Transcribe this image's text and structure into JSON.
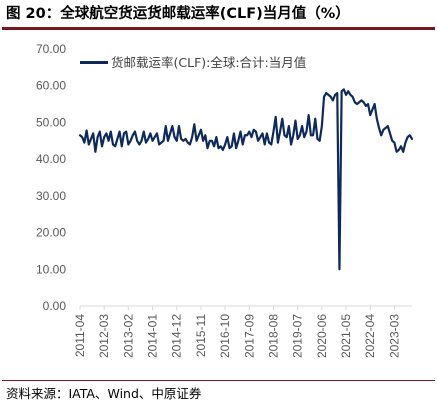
{
  "figure": {
    "title": "图 20：全球航空货运货邮载运率(CLF)当月值（%）",
    "source": "资料来源：IATA、Wind、中原证券"
  },
  "colors": {
    "line": "#0e2a5c",
    "rule": "#7a1620",
    "tick_text": "#595959",
    "axis": "#d9d9d9"
  },
  "chart_data": {
    "type": "line",
    "title": "",
    "xlabel": "",
    "ylabel": "",
    "ylim": [
      0,
      70
    ],
    "y_ticks": [
      "0.00",
      "10.00",
      "20.00",
      "30.00",
      "40.00",
      "50.00",
      "60.00",
      "70.00"
    ],
    "x_tick_labels": [
      "2011-04",
      "2012-03",
      "2013-02",
      "2014-01",
      "2014-12",
      "2015-11",
      "2016-10",
      "2017-09",
      "2018-08",
      "2019-07",
      "2020-06",
      "2021-05",
      "2022-04",
      "2023-03"
    ],
    "grid": false,
    "legend_position": "top-left",
    "series": [
      {
        "name": "货邮载运率(CLF):全球:合计:当月值",
        "x_start": "2011-04",
        "frequency": "monthly",
        "values": [
          46.5,
          46.0,
          44.5,
          47.8,
          44.0,
          45.5,
          47.0,
          42.0,
          46.0,
          47.5,
          43.5,
          46.0,
          47.0,
          45.0,
          47.5,
          44.0,
          43.5,
          45.5,
          47.5,
          43.5,
          47.0,
          47.5,
          44.0,
          45.0,
          46.5,
          47.5,
          45.0,
          44.0,
          45.0,
          47.5,
          44.5,
          45.5,
          47.0,
          45.0,
          46.0,
          47.0,
          44.0,
          44.5,
          45.0,
          49.0,
          45.0,
          47.0,
          49.0,
          46.0,
          45.0,
          49.0,
          45.5,
          45.0,
          45.5,
          44.5,
          44.0,
          46.0,
          49.5,
          45.0,
          46.5,
          48.0,
          45.0,
          46.5,
          43.0,
          45.0,
          45.0,
          43.5,
          46.0,
          43.0,
          43.5,
          42.5,
          44.0,
          46.0,
          43.0,
          43.5,
          47.0,
          43.0,
          45.0,
          47.5,
          44.0,
          46.5,
          46.5,
          47.5,
          46.0,
          48.0,
          47.5,
          45.0,
          46.0,
          47.0,
          44.0,
          47.0,
          44.5,
          44.0,
          47.5,
          51.5,
          44.5,
          47.5,
          51.0,
          46.5,
          46.0,
          49.0,
          44.0,
          46.5,
          50.5,
          45.5,
          46.5,
          49.0,
          46.0,
          47.5,
          52.0,
          46.5,
          46.5,
          51.0,
          45.5,
          45.0,
          49.0,
          57.0,
          58.0,
          57.5,
          57.0,
          56.0,
          57.5,
          58.0,
          10.0,
          58.5,
          59.0,
          57.5,
          58.5,
          57.5,
          57.0,
          55.5,
          55.0,
          55.5,
          56.0,
          55.5,
          54.5,
          55.0,
          52.0,
          53.5,
          55.0,
          51.0,
          48.5,
          46.5,
          48.0,
          48.5,
          49.0,
          47.0,
          45.0,
          44.5,
          42.0,
          42.5,
          43.5,
          42.0,
          44.5,
          46.0,
          46.5,
          45.5
        ]
      }
    ]
  }
}
